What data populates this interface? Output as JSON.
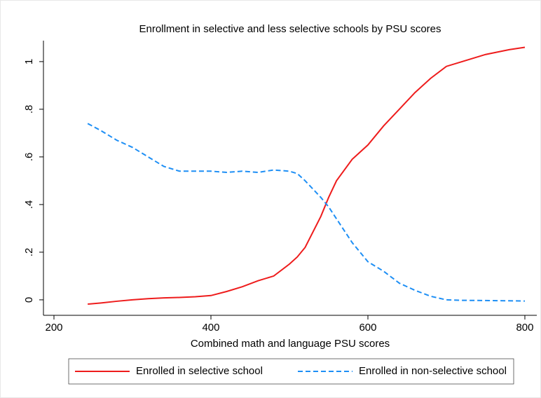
{
  "chart_data": {
    "type": "line",
    "title": "Enrollment in selective and less selective schools by PSU scores",
    "x_label": "Combined math and language PSU scores",
    "x": [
      243,
      260,
      280,
      300,
      320,
      340,
      360,
      380,
      400,
      420,
      440,
      460,
      480,
      500,
      510,
      520,
      540,
      550,
      560,
      580,
      600,
      620,
      640,
      660,
      680,
      700,
      720,
      750,
      780,
      800
    ],
    "series": [
      {
        "name": "Enrolled in selective school",
        "color": "#ee1c1c",
        "dash": false,
        "values": [
          -0.018,
          -0.013,
          -0.006,
          0.0,
          0.005,
          0.008,
          0.01,
          0.013,
          0.018,
          0.035,
          0.055,
          0.08,
          0.1,
          0.15,
          0.18,
          0.22,
          0.35,
          0.43,
          0.5,
          0.59,
          0.65,
          0.73,
          0.8,
          0.87,
          0.93,
          0.98,
          1.0,
          1.03,
          1.05,
          1.06
        ]
      },
      {
        "name": "Enrolled in non-selective school",
        "color": "#1e8ff5",
        "dash": true,
        "values": [
          0.74,
          0.71,
          0.67,
          0.64,
          0.6,
          0.56,
          0.54,
          0.54,
          0.54,
          0.535,
          0.54,
          0.535,
          0.545,
          0.54,
          0.53,
          0.5,
          0.43,
          0.39,
          0.34,
          0.24,
          0.16,
          0.12,
          0.07,
          0.04,
          0.015,
          0.0,
          -0.002,
          -0.003,
          -0.004,
          -0.005
        ]
      }
    ],
    "xlim": [
      186.6,
      815.2
    ],
    "xticks": [
      200,
      400,
      600,
      800
    ],
    "ylim": [
      -0.065,
      1.088
    ],
    "yticks": [
      0,
      {
        "value": 0.2,
        "label": ".2"
      },
      {
        "value": 0.4,
        "label": ".4"
      },
      {
        "value": 0.6,
        "label": ".6"
      },
      {
        "value": 0.8,
        "label": ".8"
      },
      1
    ],
    "legend": "bottom"
  }
}
